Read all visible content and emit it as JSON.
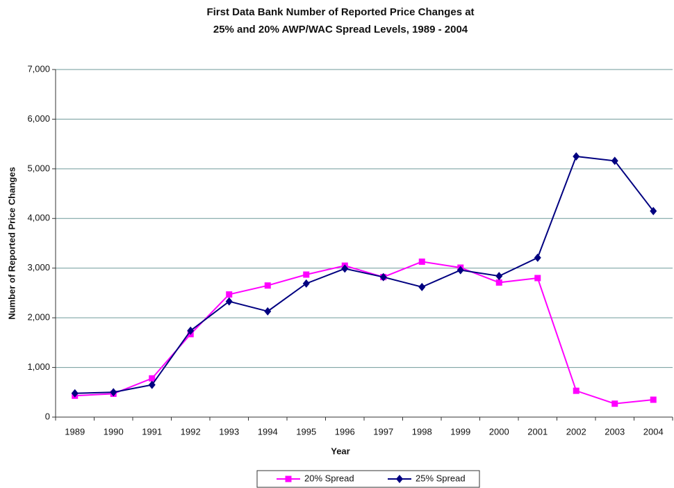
{
  "chart_data": {
    "type": "line",
    "title": [
      "First Data Bank Number of Reported Price Changes at",
      "25% and 20% AWP/WAC Spread Levels, 1989 - 2004"
    ],
    "x_label": "Year",
    "y_label": "Number of Reported Price Changes",
    "categories": [
      "1989",
      "1990",
      "1991",
      "1992",
      "1993",
      "1994",
      "1995",
      "1996",
      "1997",
      "1998",
      "1999",
      "2000",
      "2001",
      "2002",
      "2003",
      "2004"
    ],
    "series": [
      {
        "name": "20% Spread",
        "color": "#ff00ff",
        "marker": "square",
        "values": [
          430,
          470,
          780,
          1670,
          2470,
          2650,
          2870,
          3050,
          2820,
          3130,
          3010,
          2710,
          2800,
          530,
          270,
          350
        ]
      },
      {
        "name": "25% Spread",
        "color": "#000080",
        "marker": "diamond",
        "values": [
          480,
          500,
          650,
          1740,
          2330,
          2130,
          2690,
          2990,
          2820,
          2620,
          2960,
          2840,
          3210,
          5250,
          5160,
          4150
        ]
      }
    ],
    "ylim": [
      0,
      7000
    ],
    "yticks": [
      {
        "value": 0,
        "label": "0"
      },
      {
        "value": 1000,
        "label": "1,000"
      },
      {
        "value": 2000,
        "label": "2,000"
      },
      {
        "value": 3000,
        "label": "3,000"
      },
      {
        "value": 4000,
        "label": "4,000"
      },
      {
        "value": 5000,
        "label": "5,000"
      },
      {
        "value": 6000,
        "label": "6,000"
      },
      {
        "value": 7000,
        "label": "7,000"
      }
    ],
    "grid": true,
    "legend": "bottom"
  }
}
